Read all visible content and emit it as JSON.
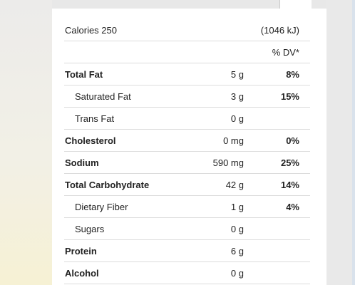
{
  "calories": {
    "label": "Calories 250",
    "kj": "(1046 kJ)"
  },
  "dv_header": "% DV*",
  "rows": [
    {
      "name": "Total Fat",
      "amount": "5 g",
      "dv": "8%",
      "bold": true,
      "indent": false
    },
    {
      "name": "Saturated Fat",
      "amount": "3 g",
      "dv": "15%",
      "bold": false,
      "indent": true
    },
    {
      "name": "Trans Fat",
      "amount": "0 g",
      "dv": "",
      "bold": false,
      "indent": true
    },
    {
      "name": "Cholesterol",
      "amount": "0 mg",
      "dv": "0%",
      "bold": true,
      "indent": false
    },
    {
      "name": "Sodium",
      "amount": "590 mg",
      "dv": "25%",
      "bold": true,
      "indent": false
    },
    {
      "name": "Total Carbohydrate",
      "amount": "42 g",
      "dv": "14%",
      "bold": true,
      "indent": false
    },
    {
      "name": "Dietary Fiber",
      "amount": "1 g",
      "dv": "4%",
      "bold": false,
      "indent": true
    },
    {
      "name": "Sugars",
      "amount": "0 g",
      "dv": "",
      "bold": false,
      "indent": true
    },
    {
      "name": "Protein",
      "amount": "6 g",
      "dv": "",
      "bold": true,
      "indent": false
    },
    {
      "name": "Alcohol",
      "amount": "0 g",
      "dv": "",
      "bold": true,
      "indent": false
    }
  ]
}
